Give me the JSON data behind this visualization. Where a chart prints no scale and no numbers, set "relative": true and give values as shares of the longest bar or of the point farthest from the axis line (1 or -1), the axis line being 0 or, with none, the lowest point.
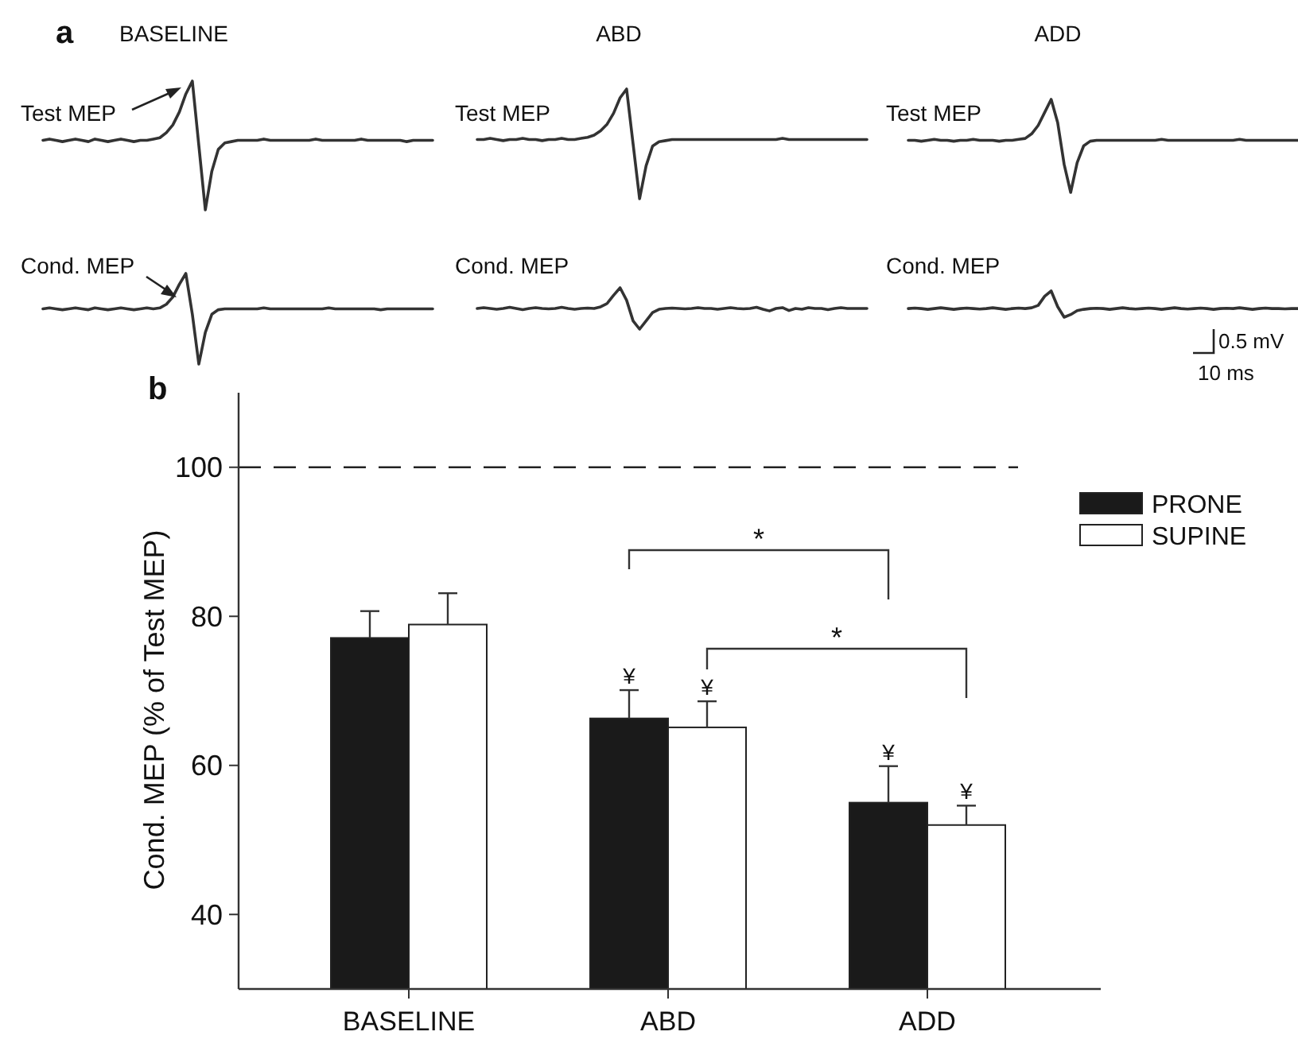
{
  "chart_data": [
    {
      "type": "line",
      "title": "BASELINE",
      "relative": true,
      "categories": [
        null,
        null,
        null,
        null,
        null,
        null,
        null,
        null,
        null,
        null,
        null,
        null,
        null,
        null,
        null,
        null,
        null,
        null,
        null,
        null,
        null,
        null,
        null,
        null,
        null,
        null,
        null,
        null,
        null,
        null,
        null,
        null,
        null,
        null,
        null,
        null,
        null,
        null,
        null,
        null,
        null,
        null,
        null,
        null,
        null,
        null,
        null,
        null,
        null,
        null,
        null,
        null,
        null,
        null,
        null,
        null,
        null,
        null,
        null,
        null,
        null
      ],
      "annotations": [
        "a",
        "Test MEP"
      ],
      "series": [
        {
          "color": "#333333",
          "values": [
            0.54,
            0.55,
            0.54,
            0.53,
            0.54,
            0.55,
            0.54,
            0.53,
            0.55,
            0.54,
            0.53,
            0.54,
            0.55,
            0.54,
            0.53,
            0.54,
            0.54,
            0.55,
            0.56,
            0.6,
            0.66,
            0.76,
            0.9,
            1,
            0.5,
            0,
            0.3,
            0.47,
            0.52,
            0.53,
            0.54,
            0.54,
            0.54,
            0.54,
            0.55,
            0.54,
            0.54,
            0.54,
            0.54,
            0.54,
            0.54,
            0.54,
            0.55,
            0.54,
            0.54,
            0.54,
            0.54,
            0.54,
            0.54,
            0.55,
            0.54,
            0.54,
            0.54,
            0.54,
            0.54,
            0.54,
            0.53,
            0.54,
            0.54,
            0.54,
            0.54
          ]
        }
      ]
    },
    {
      "type": "line",
      "title": "ABD",
      "relative": true,
      "categories": [
        null,
        null,
        null,
        null,
        null,
        null,
        null,
        null,
        null,
        null,
        null,
        null,
        null,
        null,
        null,
        null,
        null,
        null,
        null,
        null,
        null,
        null,
        null,
        null,
        null,
        null,
        null,
        null,
        null,
        null,
        null,
        null,
        null,
        null,
        null,
        null,
        null,
        null,
        null,
        null,
        null,
        null,
        null,
        null,
        null,
        null,
        null,
        null,
        null,
        null,
        null,
        null,
        null,
        null,
        null,
        null,
        null,
        null,
        null,
        null,
        null
      ],
      "annotations": [
        "Test MEP"
      ],
      "series": [
        {
          "color": "#333333",
          "values": [
            0.54,
            0.54,
            0.55,
            0.54,
            0.53,
            0.54,
            0.54,
            0.55,
            0.54,
            0.54,
            0.53,
            0.54,
            0.54,
            0.55,
            0.54,
            0.54,
            0.55,
            0.56,
            0.58,
            0.62,
            0.68,
            0.78,
            0.92,
            1,
            0.5,
            0,
            0.3,
            0.48,
            0.52,
            0.53,
            0.54,
            0.54,
            0.54,
            0.54,
            0.54,
            0.54,
            0.54,
            0.54,
            0.54,
            0.54,
            0.54,
            0.54,
            0.54,
            0.54,
            0.54,
            0.54,
            0.54,
            0.55,
            0.54,
            0.54,
            0.54,
            0.54,
            0.54,
            0.54,
            0.54,
            0.54,
            0.54,
            0.54,
            0.54,
            0.54,
            0.54
          ]
        }
      ]
    },
    {
      "type": "line",
      "title": "ADD",
      "relative": true,
      "categories": [
        null,
        null,
        null,
        null,
        null,
        null,
        null,
        null,
        null,
        null,
        null,
        null,
        null,
        null,
        null,
        null,
        null,
        null,
        null,
        null,
        null,
        null,
        null,
        null,
        null,
        null,
        null,
        null,
        null,
        null,
        null,
        null,
        null,
        null,
        null,
        null,
        null,
        null,
        null,
        null,
        null,
        null,
        null,
        null,
        null,
        null,
        null,
        null,
        null,
        null,
        null,
        null,
        null,
        null,
        null,
        null,
        null,
        null,
        null,
        null,
        null
      ],
      "annotations": [
        "Test MEP"
      ],
      "series": [
        {
          "color": "#333333",
          "values": [
            0.56,
            0.56,
            0.55,
            0.56,
            0.57,
            0.56,
            0.56,
            0.55,
            0.56,
            0.56,
            0.57,
            0.56,
            0.56,
            0.56,
            0.55,
            0.56,
            0.56,
            0.57,
            0.58,
            0.63,
            0.72,
            0.86,
            1,
            0.75,
            0.3,
            0,
            0.32,
            0.5,
            0.55,
            0.56,
            0.56,
            0.56,
            0.56,
            0.56,
            0.56,
            0.56,
            0.56,
            0.56,
            0.56,
            0.57,
            0.56,
            0.56,
            0.56,
            0.56,
            0.56,
            0.56,
            0.56,
            0.56,
            0.56,
            0.56,
            0.56,
            0.57,
            0.56,
            0.56,
            0.56,
            0.56,
            0.56,
            0.56,
            0.56,
            0.56,
            0.56
          ]
        }
      ]
    },
    {
      "type": "line",
      "relative": true,
      "categories": [
        null,
        null,
        null,
        null,
        null,
        null,
        null,
        null,
        null,
        null,
        null,
        null,
        null,
        null,
        null,
        null,
        null,
        null,
        null,
        null,
        null,
        null,
        null,
        null,
        null,
        null,
        null,
        null,
        null,
        null,
        null,
        null,
        null,
        null,
        null,
        null,
        null,
        null,
        null,
        null,
        null,
        null,
        null,
        null,
        null,
        null,
        null,
        null,
        null,
        null,
        null,
        null,
        null,
        null,
        null,
        null,
        null,
        null,
        null,
        null,
        null
      ],
      "annotations": [
        "Cond. MEP"
      ],
      "series": [
        {
          "color": "#333333",
          "values": [
            0.61,
            0.62,
            0.61,
            0.6,
            0.61,
            0.62,
            0.61,
            0.6,
            0.62,
            0.61,
            0.6,
            0.61,
            0.62,
            0.61,
            0.6,
            0.61,
            0.62,
            0.61,
            0.62,
            0.66,
            0.74,
            0.88,
            1,
            0.55,
            0,
            0.35,
            0.55,
            0.6,
            0.61,
            0.61,
            0.61,
            0.61,
            0.61,
            0.61,
            0.62,
            0.61,
            0.61,
            0.61,
            0.61,
            0.61,
            0.61,
            0.61,
            0.61,
            0.61,
            0.62,
            0.61,
            0.61,
            0.61,
            0.61,
            0.61,
            0.61,
            0.61,
            0.6,
            0.61,
            0.61,
            0.61,
            0.61,
            0.61,
            0.61,
            0.61,
            0.61
          ]
        }
      ]
    },
    {
      "type": "line",
      "relative": true,
      "categories": [
        null,
        null,
        null,
        null,
        null,
        null,
        null,
        null,
        null,
        null,
        null,
        null,
        null,
        null,
        null,
        null,
        null,
        null,
        null,
        null,
        null,
        null,
        null,
        null,
        null,
        null,
        null,
        null,
        null,
        null,
        null,
        null,
        null,
        null,
        null,
        null,
        null,
        null,
        null,
        null,
        null,
        null,
        null,
        null,
        null,
        null,
        null,
        null,
        null,
        null,
        null,
        null,
        null,
        null,
        null,
        null,
        null,
        null,
        null,
        null,
        null
      ],
      "annotations": [
        "Cond. MEP"
      ],
      "series": [
        {
          "color": "#333333",
          "values": [
            0.5,
            0.52,
            0.5,
            0.48,
            0.5,
            0.53,
            0.5,
            0.47,
            0.5,
            0.52,
            0.5,
            0.49,
            0.5,
            0.53,
            0.5,
            0.48,
            0.5,
            0.51,
            0.5,
            0.54,
            0.62,
            0.82,
            1,
            0.7,
            0.2,
            0,
            0.2,
            0.4,
            0.48,
            0.5,
            0.51,
            0.5,
            0.49,
            0.5,
            0.52,
            0.5,
            0.5,
            0.48,
            0.5,
            0.52,
            0.5,
            0.49,
            0.5,
            0.53,
            0.48,
            0.44,
            0.5,
            0.52,
            0.45,
            0.5,
            0.48,
            0.52,
            0.5,
            0.5,
            0.47,
            0.5,
            0.52,
            0.5,
            0.5,
            0.5,
            0.5
          ]
        }
      ]
    },
    {
      "type": "line",
      "relative": true,
      "categories": [
        null,
        null,
        null,
        null,
        null,
        null,
        null,
        null,
        null,
        null,
        null,
        null,
        null,
        null,
        null,
        null,
        null,
        null,
        null,
        null,
        null,
        null,
        null,
        null,
        null,
        null,
        null,
        null,
        null,
        null,
        null,
        null,
        null,
        null,
        null,
        null,
        null,
        null,
        null,
        null,
        null,
        null,
        null,
        null,
        null,
        null,
        null,
        null,
        null,
        null,
        null,
        null,
        null,
        null,
        null,
        null,
        null,
        null,
        null,
        null,
        null
      ],
      "annotations": [
        "Cond. MEP",
        "0.5 mV",
        "10 ms"
      ],
      "series": [
        {
          "color": "#333333",
          "values": [
            0.33,
            0.35,
            0.33,
            0.3,
            0.33,
            0.36,
            0.33,
            0.3,
            0.33,
            0.35,
            0.33,
            0.31,
            0.33,
            0.36,
            0.33,
            0.3,
            0.33,
            0.35,
            0.33,
            0.36,
            0.45,
            0.8,
            1,
            0.4,
            0,
            0.1,
            0.25,
            0.3,
            0.33,
            0.34,
            0.33,
            0.3,
            0.33,
            0.36,
            0.33,
            0.31,
            0.33,
            0.35,
            0.33,
            0.3,
            0.33,
            0.36,
            0.33,
            0.31,
            0.33,
            0.35,
            0.33,
            0.3,
            0.33,
            0.34,
            0.33,
            0.36,
            0.33,
            0.3,
            0.33,
            0.35,
            0.33,
            0.33,
            0.32,
            0.33,
            0.33
          ]
        }
      ]
    },
    {
      "type": "bar",
      "ylabel": "Cond. MEP (% of Test MEP)",
      "categories": [
        "BASELINE",
        "ABD",
        "ADD"
      ],
      "ylim": [
        30,
        110
      ],
      "yticks": [
        40,
        60,
        80,
        100
      ],
      "legend": "top right",
      "annotations": [
        "b",
        "*",
        "*"
      ],
      "ref_lines": [
        {
          "axis": "y",
          "value": 100,
          "line_style": "dashed",
          "color": "#222222"
        }
      ],
      "series": [
        {
          "name": "PRONE",
          "color": "#1a1a1a",
          "values": [
            77.1,
            66.3,
            55.0
          ],
          "errors": [
            3.6,
            3.8,
            4.9
          ],
          "value_labels": [
            null,
            "¥",
            "¥"
          ]
        },
        {
          "name": "SUPINE",
          "color": "#ffffff",
          "values": [
            78.9,
            65.1,
            52.0
          ],
          "errors": [
            4.2,
            3.5,
            2.6
          ],
          "value_labels": [
            null,
            "¥",
            "¥"
          ]
        }
      ]
    }
  ]
}
